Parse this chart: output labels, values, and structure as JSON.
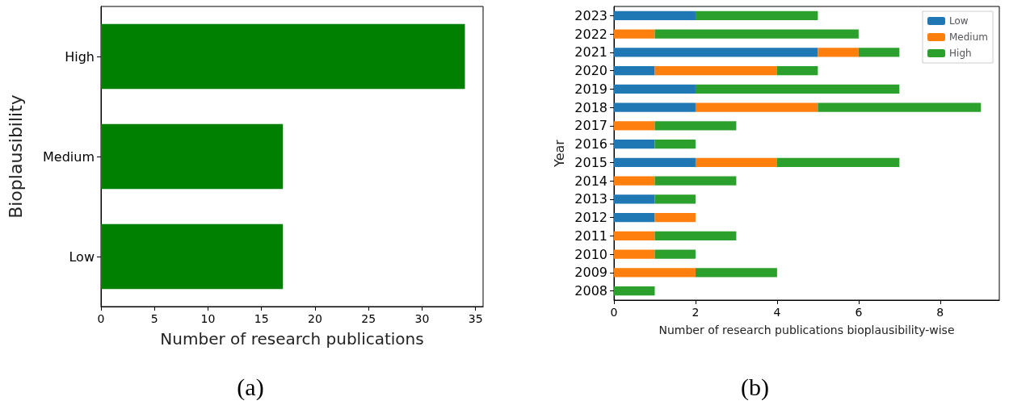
{
  "chart_data": [
    {
      "type": "bar",
      "orientation": "horizontal",
      "xlabel": "Number of research publications",
      "ylabel": "Bioplausibility",
      "categories": [
        "High",
        "Medium",
        "Low"
      ],
      "values": [
        34,
        17,
        17
      ],
      "color": "#008000",
      "xlim": [
        0,
        35.7
      ],
      "xticks": [
        0,
        5,
        10,
        15,
        20,
        25,
        30,
        35
      ],
      "grid": false,
      "legend": false,
      "annotations": [
        "(a)"
      ]
    },
    {
      "type": "bar",
      "orientation": "horizontal",
      "stacked": true,
      "xlabel": "Number of research publications bioplausibility-wise",
      "ylabel": "Year",
      "categories": [
        "2023",
        "2022",
        "2021",
        "2020",
        "2019",
        "2018",
        "2017",
        "2016",
        "2015",
        "2014",
        "2013",
        "2012",
        "2011",
        "2010",
        "2009",
        "2008"
      ],
      "series": [
        {
          "name": "Low",
          "color": "#1f77b4",
          "values": [
            2,
            0,
            5,
            1,
            2,
            2,
            0,
            1,
            2,
            0,
            1,
            1,
            0,
            0,
            0,
            0
          ]
        },
        {
          "name": "Medium",
          "color": "#ff7f0e",
          "values": [
            0,
            1,
            1,
            3,
            0,
            3,
            1,
            0,
            2,
            1,
            0,
            1,
            1,
            1,
            2,
            0
          ]
        },
        {
          "name": "High",
          "color": "#2ca02c",
          "values": [
            3,
            5,
            1,
            1,
            5,
            4,
            2,
            1,
            3,
            2,
            1,
            0,
            2,
            1,
            2,
            1
          ]
        }
      ],
      "xlim": [
        0,
        9.45
      ],
      "xticks": [
        0,
        2,
        4,
        6,
        8
      ],
      "grid": false,
      "legend": "top right",
      "annotations": [
        "(b)"
      ]
    }
  ]
}
